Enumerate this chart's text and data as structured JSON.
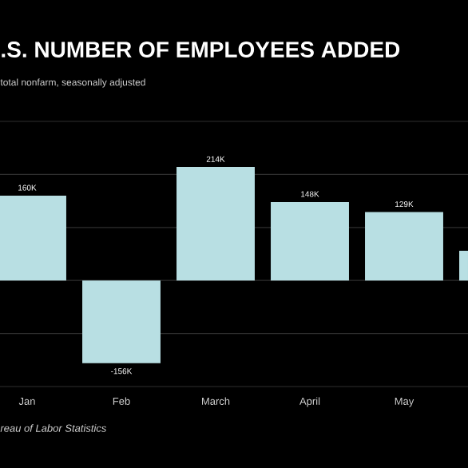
{
  "chart_data": {
    "type": "bar",
    "title": ".S. NUMBER OF EMPLOYEES ADDED",
    "subtitle": "total nonfarm, seasonally adjusted",
    "annotations": [
      "reau of Labor Statistics"
    ],
    "categories": [
      "Jan",
      "Feb",
      "March",
      "April",
      "May",
      null
    ],
    "values": [
      160,
      -156,
      214,
      148,
      129,
      56
    ],
    "value_labels": [
      "160K",
      "-156K",
      "214K",
      "148K",
      "129K",
      null
    ],
    "color": "#b8dfe3",
    "ylim": [
      -200,
      300
    ],
    "yticks": [
      {
        "value": -200,
        "label": null
      },
      {
        "value": -100,
        "label": null
      },
      {
        "value": 0,
        "label": null
      },
      {
        "value": 100,
        "label": null
      },
      {
        "value": 200,
        "label": null
      },
      {
        "value": 300,
        "label": null
      }
    ],
    "grid": "y"
  }
}
